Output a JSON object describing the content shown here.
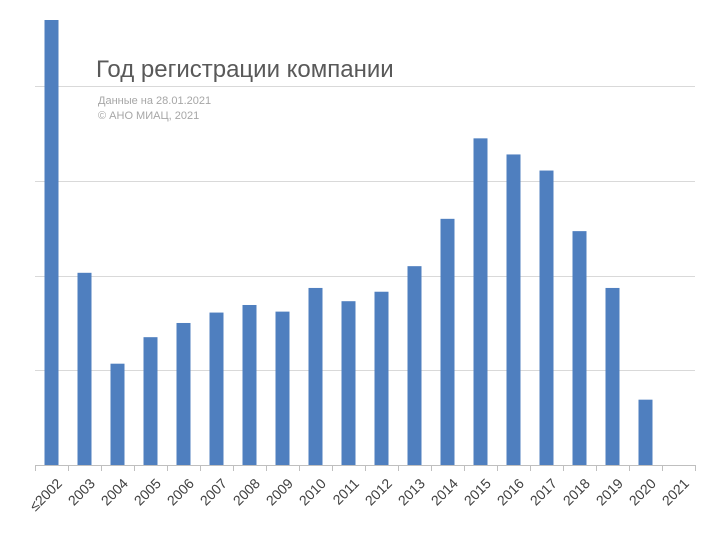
{
  "chart_data": {
    "type": "bar",
    "title": "Год регистрации компании",
    "subtitle_lines": [
      "Данные на 28.01.2021",
      "© АНО МИАЦ, 2021"
    ],
    "xlabel": "",
    "ylabel": "",
    "categories": [
      "≤2002",
      "2003",
      "2004",
      "2005",
      "2006",
      "2007",
      "2008",
      "2009",
      "2010",
      "2011",
      "2012",
      "2013",
      "2014",
      "2015",
      "2016",
      "2017",
      "2018",
      "2019",
      "2020",
      "2021"
    ],
    "values": [
      4.7,
      2.03,
      1.07,
      1.35,
      1.5,
      1.61,
      1.69,
      1.62,
      1.87,
      1.73,
      1.83,
      2.1,
      2.6,
      3.45,
      3.28,
      3.11,
      2.47,
      1.87,
      0.69,
      0
    ],
    "ylim": [
      0,
      4.7
    ],
    "y_gridlines": [
      1,
      2,
      3,
      4
    ],
    "y_tick_labels_shown": false,
    "grid": true,
    "legend": "none",
    "colors": {
      "bar": "#4f7fbf",
      "grid": "#d9d9d9",
      "axis": "#bfbfbf",
      "title": "#595959",
      "note": "#a6a6a6",
      "tick_text": "#404040"
    }
  }
}
